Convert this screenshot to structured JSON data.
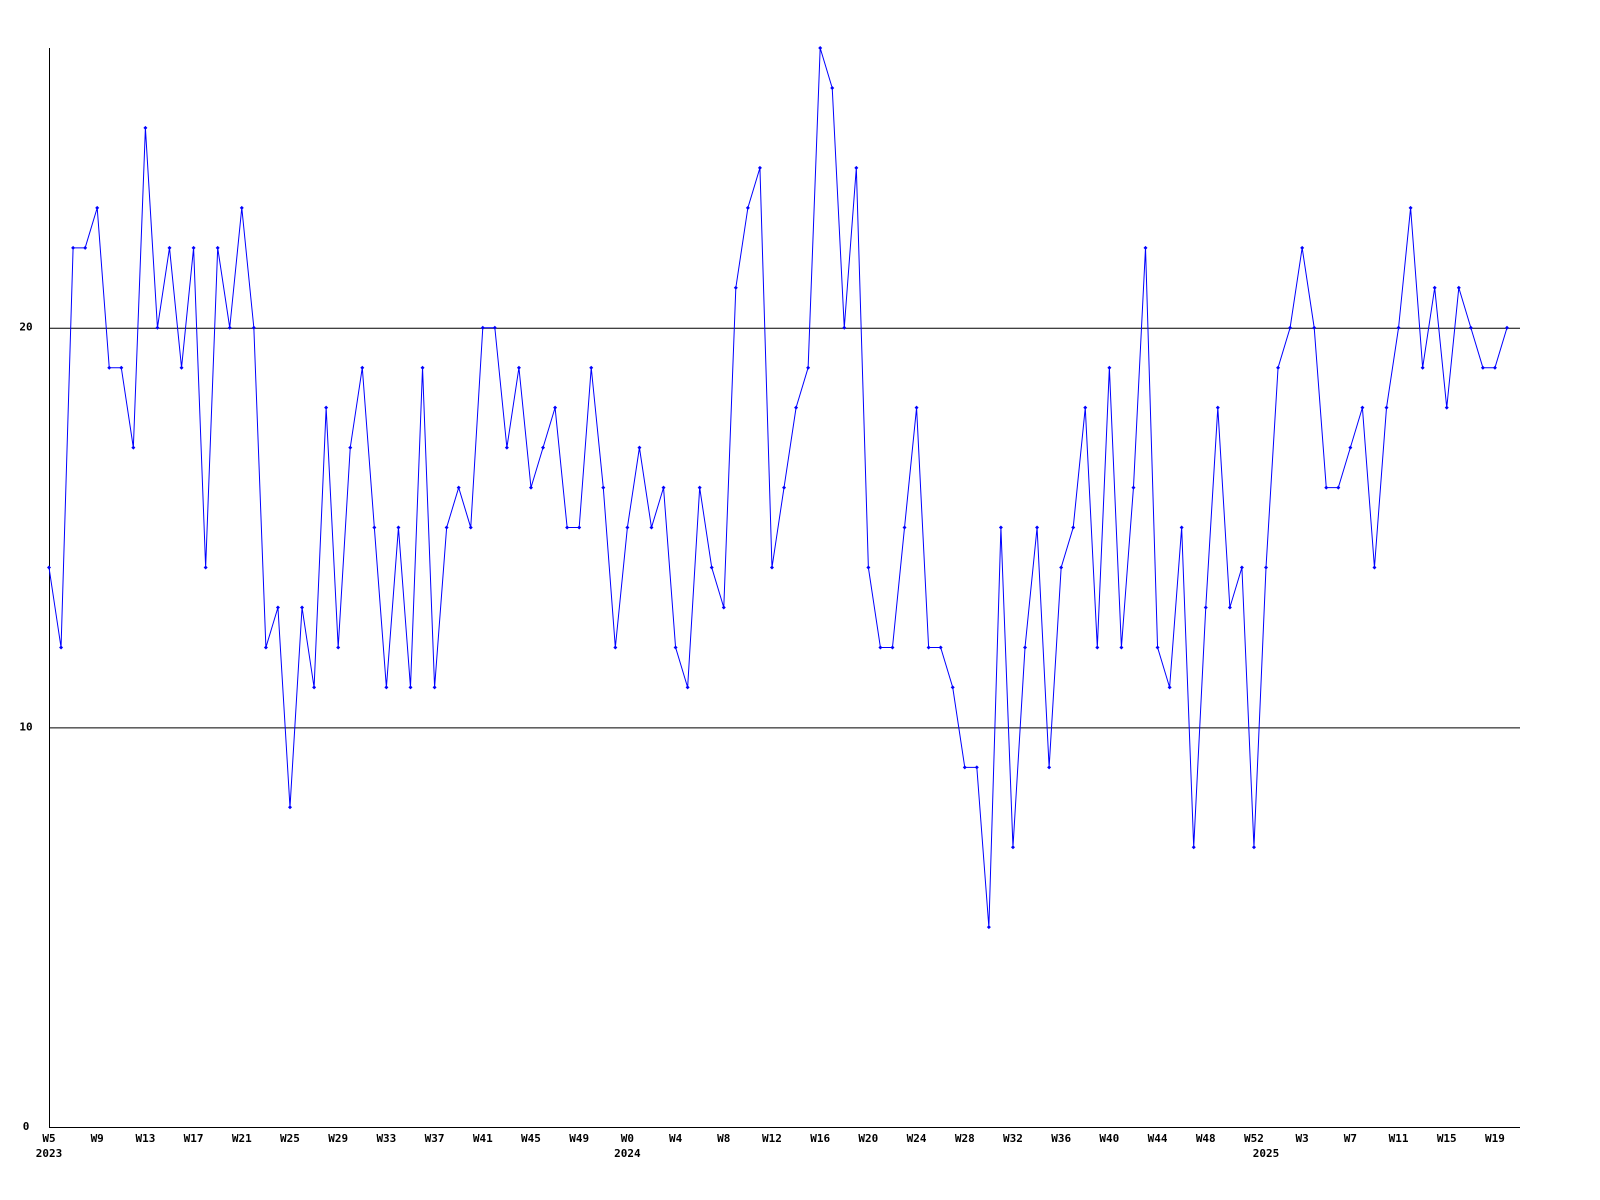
{
  "chart_data": {
    "type": "line",
    "categories": [
      "W5",
      null,
      null,
      null,
      "W9",
      null,
      null,
      null,
      "W13",
      null,
      null,
      null,
      "W17",
      null,
      null,
      null,
      "W21",
      null,
      null,
      null,
      "W25",
      null,
      null,
      null,
      "W29",
      null,
      null,
      null,
      "W33",
      null,
      null,
      null,
      "W37",
      null,
      null,
      null,
      "W41",
      null,
      null,
      null,
      "W45",
      null,
      null,
      null,
      "W49",
      null,
      null,
      null,
      "W0",
      null,
      null,
      null,
      "W4",
      null,
      null,
      null,
      "W8",
      null,
      null,
      null,
      "W12",
      null,
      null,
      null,
      "W16",
      null,
      null,
      null,
      "W20",
      null,
      null,
      null,
      "W24",
      null,
      null,
      null,
      "W28",
      null,
      null,
      null,
      "W32",
      null,
      null,
      null,
      "W36",
      null,
      null,
      null,
      "W40",
      null,
      null,
      null,
      "W44",
      null,
      null,
      null,
      "W48",
      null,
      null,
      null,
      "W52",
      null,
      null,
      null,
      "W3",
      null,
      null,
      null,
      "W7",
      null,
      null,
      null,
      "W11",
      null,
      null,
      null,
      "W15",
      null,
      null,
      null,
      "W19",
      null
    ],
    "years": [
      "2023",
      null,
      null,
      null,
      null,
      null,
      null,
      null,
      null,
      null,
      null,
      null,
      null,
      null,
      null,
      null,
      null,
      null,
      null,
      null,
      null,
      null,
      null,
      null,
      null,
      null,
      null,
      null,
      null,
      null,
      null,
      null,
      null,
      null,
      null,
      null,
      null,
      null,
      null,
      null,
      null,
      null,
      null,
      null,
      null,
      null,
      null,
      null,
      "2024",
      null,
      null,
      null,
      null,
      null,
      null,
      null,
      null,
      null,
      null,
      null,
      null,
      null,
      null,
      null,
      null,
      null,
      null,
      null,
      null,
      null,
      null,
      null,
      null,
      null,
      null,
      null,
      null,
      null,
      null,
      null,
      null,
      null,
      null,
      null,
      null,
      null,
      null,
      null,
      null,
      null,
      null,
      null,
      null,
      null,
      null,
      null,
      null,
      null,
      null,
      null,
      null,
      "2025",
      null,
      null,
      null,
      null,
      null,
      null,
      null,
      null,
      null,
      null,
      null,
      null,
      null,
      null,
      null,
      null,
      null,
      null,
      null,
      null
    ],
    "series": [
      {
        "color": "#0000ff",
        "values": [
          14,
          12,
          22,
          22,
          23,
          19,
          19,
          17,
          25,
          20,
          22,
          19,
          22,
          14,
          22,
          20,
          23,
          20,
          12,
          13,
          8,
          13,
          11,
          18,
          12,
          17,
          19,
          15,
          11,
          15,
          11,
          19,
          11,
          15,
          16,
          15,
          20,
          20,
          17,
          19,
          16,
          17,
          18,
          15,
          15,
          19,
          16,
          12,
          15,
          17,
          15,
          16,
          12,
          11,
          16,
          14,
          13,
          21,
          23,
          24,
          14,
          16,
          18,
          19,
          27,
          26,
          20,
          24,
          14,
          12,
          12,
          15,
          18,
          12,
          12,
          11,
          9,
          9,
          5,
          15,
          7,
          12,
          15,
          9,
          14,
          15,
          18,
          12,
          19,
          12,
          16,
          22,
          12,
          11,
          15,
          7,
          13,
          18,
          13,
          14,
          7,
          14,
          19,
          20,
          22,
          20,
          16,
          16,
          17,
          18,
          14,
          18,
          20,
          23,
          19,
          21,
          18,
          21,
          20,
          19,
          19,
          20
        ]
      }
    ],
    "ylim": [
      0,
      27
    ],
    "yticks": [
      0,
      10,
      20
    ],
    "grid": true
  }
}
